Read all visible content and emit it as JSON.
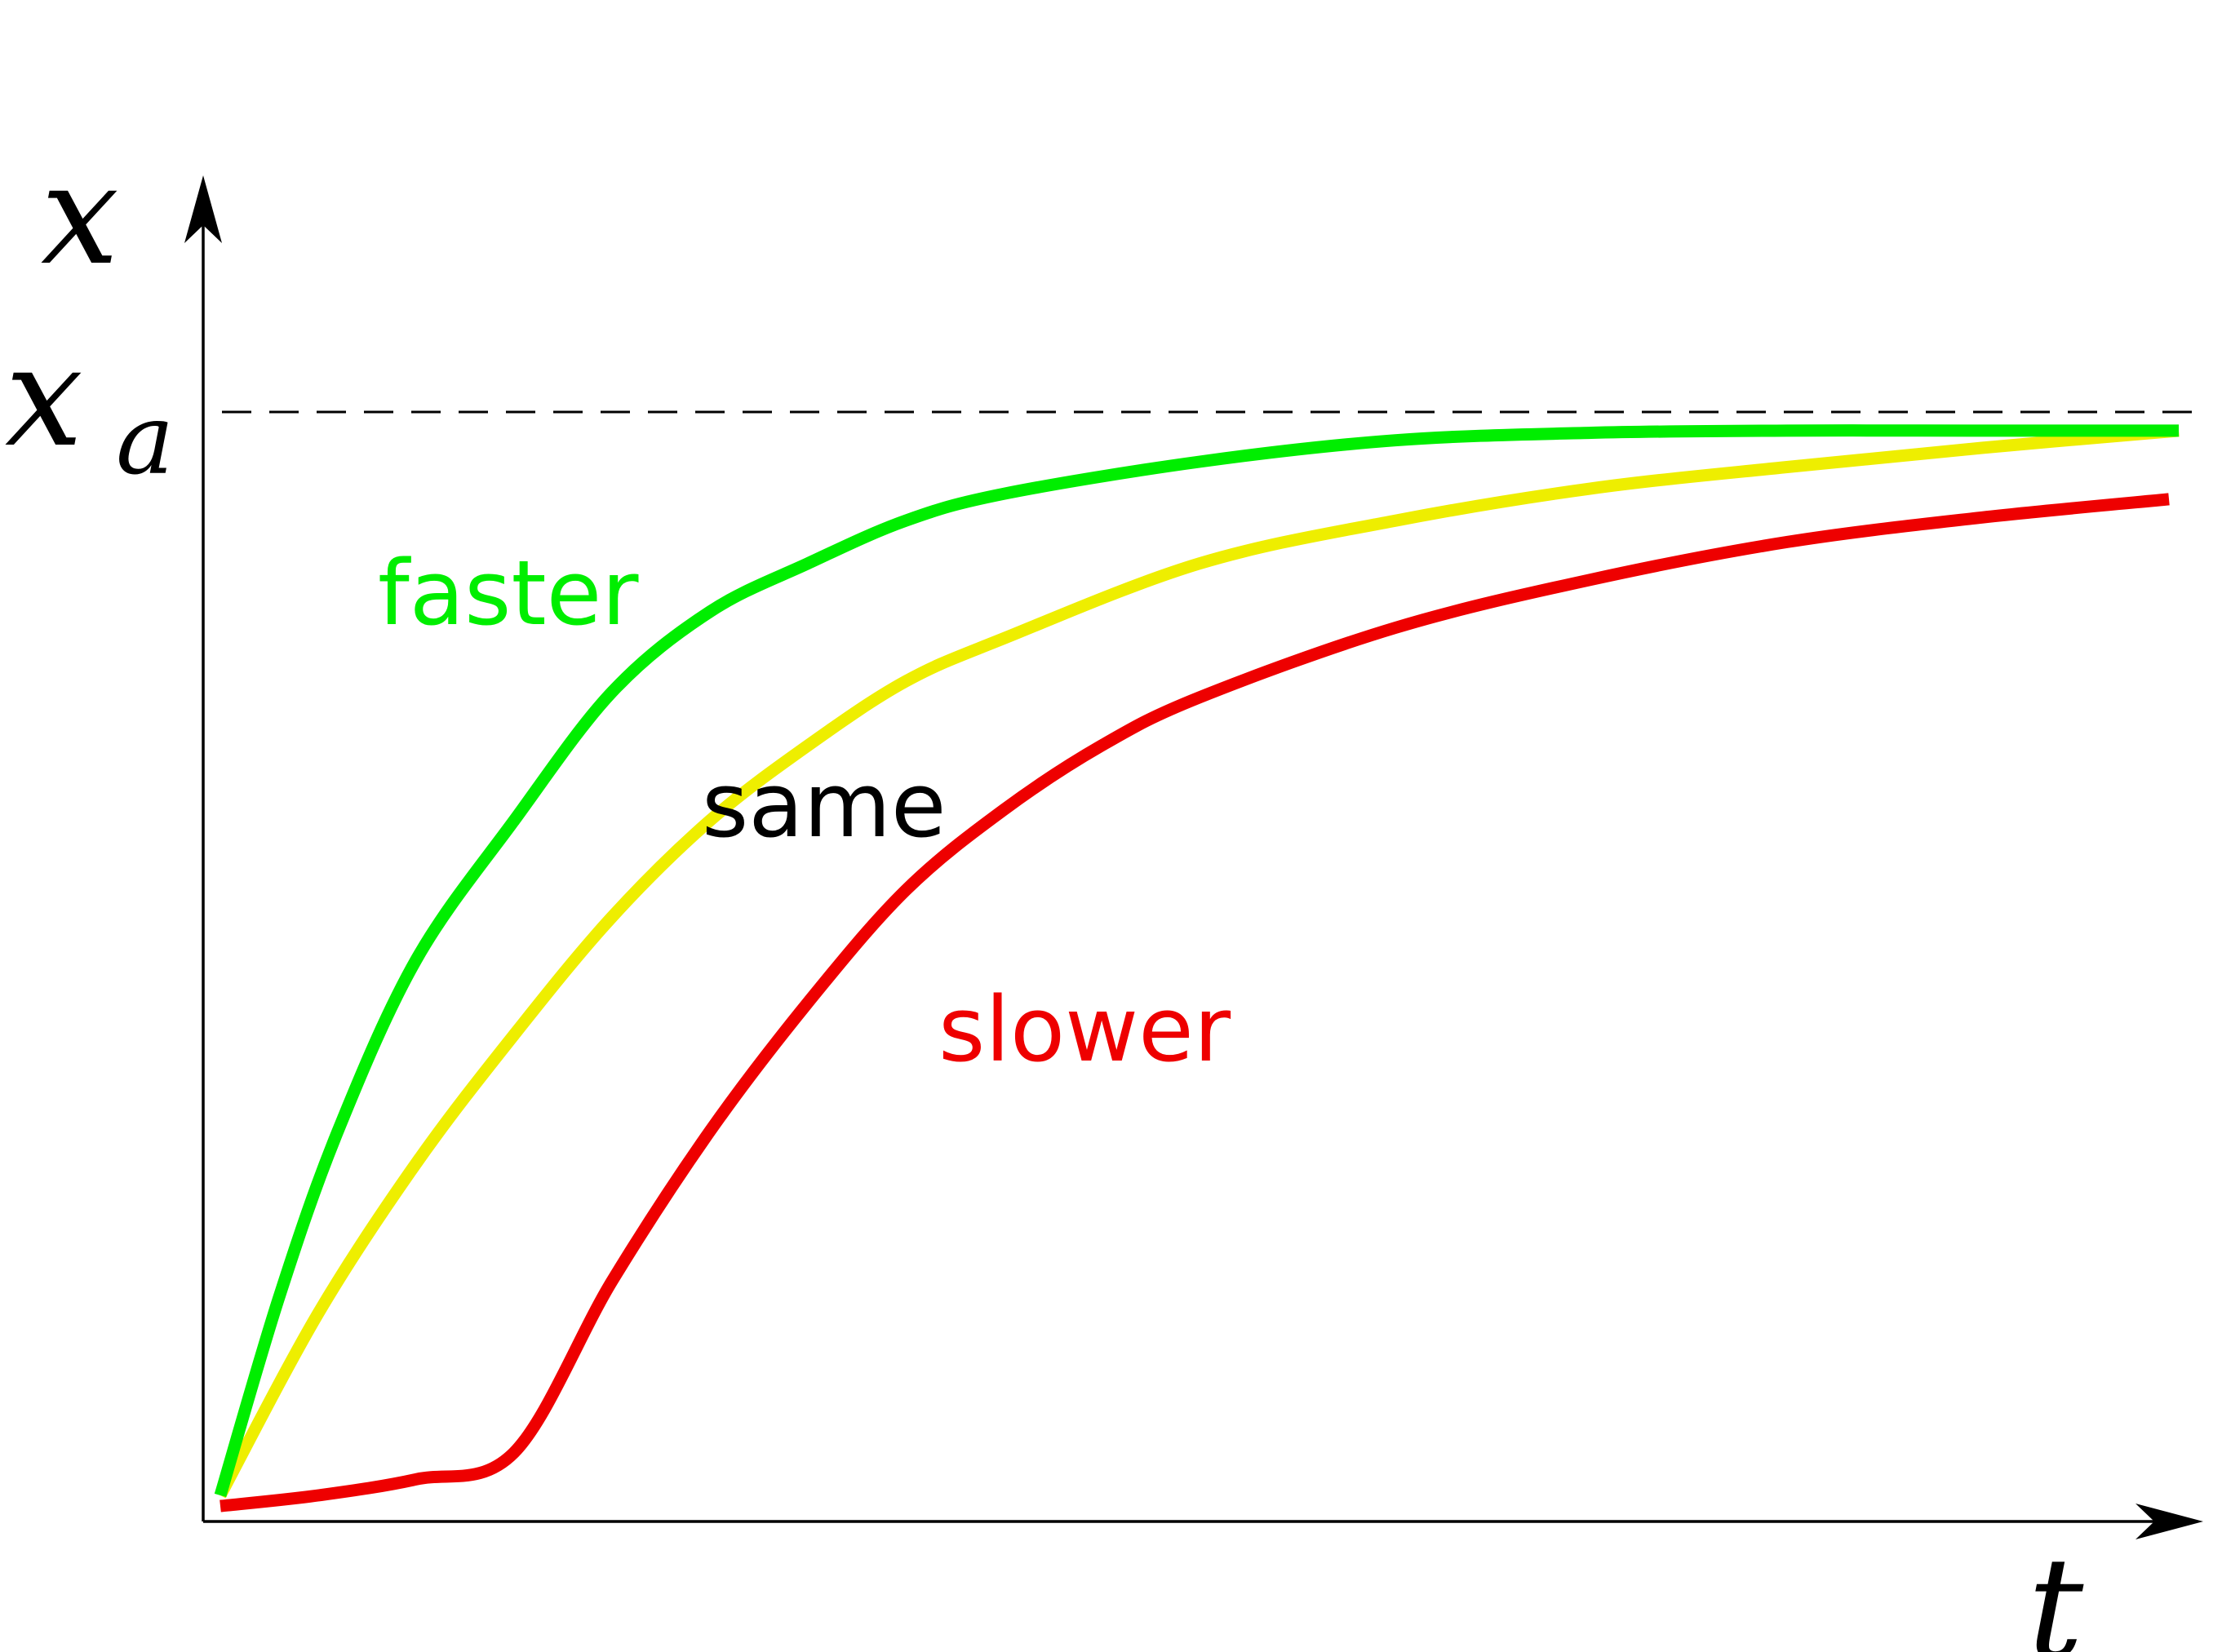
{
  "chart_data": {
    "type": "line",
    "xlabel": "t",
    "ylabel": "x",
    "reference_line": {
      "label_base": "x",
      "label_sub": "a",
      "y": 1.0,
      "style": "dashed"
    },
    "xlim": [
      0,
      10
    ],
    "ylim": [
      0,
      1.0
    ],
    "grid": false,
    "series": [
      {
        "name": "faster",
        "color": "#00ee00",
        "x": [
          0,
          0.3,
          0.6,
          1.0,
          1.5,
          2.0,
          2.5,
          3.0,
          3.5,
          4.0,
          5.0,
          6.0,
          7.0,
          8.0,
          9.0,
          10.0
        ],
        "y": [
          0.0,
          0.185,
          0.34,
          0.5,
          0.63,
          0.75,
          0.825,
          0.87,
          0.91,
          0.935,
          0.965,
          0.985,
          0.992,
          0.994,
          0.994,
          0.994
        ]
      },
      {
        "name": "same",
        "color": "#eeee00",
        "x": [
          0,
          0.5,
          1.0,
          1.5,
          2.0,
          2.5,
          3.0,
          3.5,
          4.0,
          5.0,
          6.0,
          7.0,
          8.0,
          9.0,
          10.0
        ],
        "y": [
          0.0,
          0.17,
          0.31,
          0.43,
          0.54,
          0.63,
          0.7,
          0.76,
          0.8,
          0.87,
          0.91,
          0.94,
          0.96,
          0.978,
          0.994
        ]
      },
      {
        "name": "slower",
        "color": "#ee0000",
        "x": [
          0,
          0.5,
          1.0,
          1.5,
          2.0,
          2.5,
          3.0,
          3.5,
          4.0,
          4.5,
          5.0,
          6.0,
          7.0,
          8.0,
          9.0,
          9.95
        ],
        "y": [
          -0.01,
          0.0,
          0.015,
          0.04,
          0.2,
          0.34,
          0.46,
          0.565,
          0.64,
          0.7,
          0.745,
          0.81,
          0.855,
          0.89,
          0.913,
          0.93
        ]
      }
    ]
  }
}
